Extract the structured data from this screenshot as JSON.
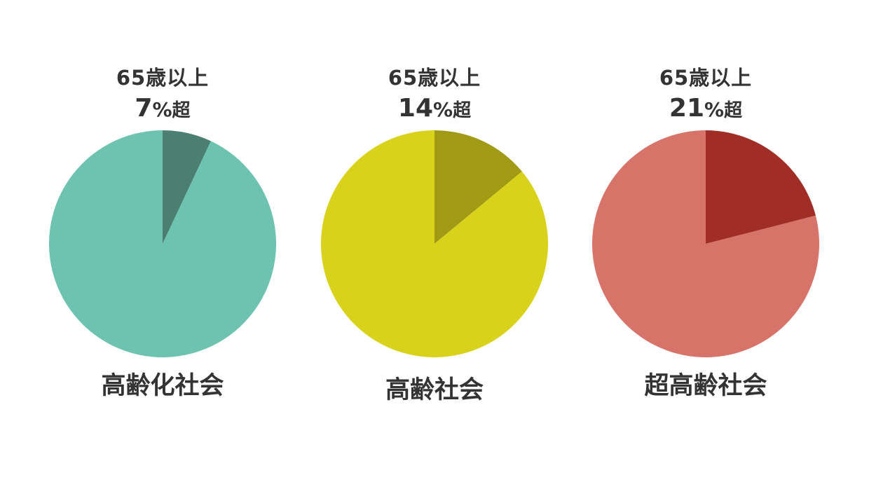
{
  "chart_data": [
    {
      "type": "pie",
      "label_top": "65歳以上",
      "threshold_number": "7",
      "threshold_unit": "%",
      "threshold_suffix": "超",
      "caption": "高齢化社会",
      "values": [
        7,
        93
      ],
      "colors": [
        "#4a7f71",
        "#6dc3b0"
      ]
    },
    {
      "type": "pie",
      "label_top": "65歳以上",
      "threshold_number": "14",
      "threshold_unit": "%",
      "threshold_suffix": "超",
      "caption": "高齢社会",
      "values": [
        14,
        86
      ],
      "colors": [
        "#a09a14",
        "#d8d31a"
      ]
    },
    {
      "type": "pie",
      "label_top": "65歳以上",
      "threshold_number": "21",
      "threshold_unit": "%",
      "threshold_suffix": "超",
      "caption": "超高齢社会",
      "values": [
        21,
        79
      ],
      "colors": [
        "#a02e26",
        "#d8736a"
      ]
    }
  ]
}
